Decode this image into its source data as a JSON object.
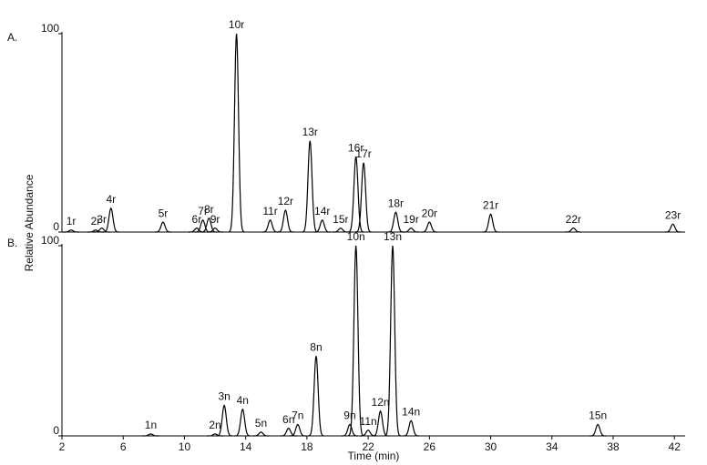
{
  "chart_data": [
    {
      "type": "chromatogram",
      "panel_label": "A.",
      "ylabel": "Relative Abundance",
      "xlim": [
        2,
        42.7
      ],
      "ylim": [
        0,
        100
      ],
      "yticks": [
        0,
        100
      ],
      "color": "#000000",
      "peaks": {
        "labels": [
          "1r",
          "2r",
          "3r",
          "4r",
          "5r",
          "6r",
          "7r",
          "8r",
          "9r",
          "10r",
          "11r",
          "12r",
          "13r",
          "14r",
          "15r",
          "16r",
          "17r",
          "18r",
          "19r",
          "20r",
          "21r",
          "22r",
          "23r"
        ],
        "x": [
          2.6,
          4.2,
          4.6,
          5.2,
          8.6,
          10.8,
          11.2,
          11.6,
          12.0,
          13.4,
          15.6,
          16.6,
          18.2,
          19.0,
          20.2,
          21.2,
          21.7,
          23.8,
          24.8,
          26.0,
          30.0,
          35.4,
          41.9
        ],
        "values": [
          1,
          1,
          2,
          12,
          5,
          2,
          6,
          7,
          2,
          100,
          6,
          11,
          46,
          6,
          2,
          38,
          35,
          10,
          2,
          5,
          9,
          2,
          4
        ]
      }
    },
    {
      "type": "chromatogram",
      "panel_label": "B.",
      "xlabel": "Time (min)",
      "xlim": [
        2,
        42.7
      ],
      "ylim": [
        0,
        100
      ],
      "yticks": [
        0,
        100
      ],
      "xticks": [
        2,
        6,
        10,
        14,
        18,
        22,
        26,
        30,
        34,
        38,
        42
      ],
      "color": "#000000",
      "peaks": {
        "labels": [
          "1n",
          "2n",
          "3n",
          "4n",
          "5n",
          "6n",
          "7n",
          "8n",
          "9n",
          "10n",
          "11n",
          "12n",
          "13n",
          "14n",
          "15n"
        ],
        "x": [
          7.8,
          12.0,
          12.6,
          13.8,
          15.0,
          16.8,
          17.4,
          18.6,
          20.8,
          21.2,
          22.0,
          22.8,
          23.6,
          24.8,
          37.0
        ],
        "values": [
          1,
          1,
          16,
          14,
          2,
          4,
          6,
          42,
          6,
          100,
          3,
          13,
          100,
          8,
          6
        ]
      }
    }
  ]
}
